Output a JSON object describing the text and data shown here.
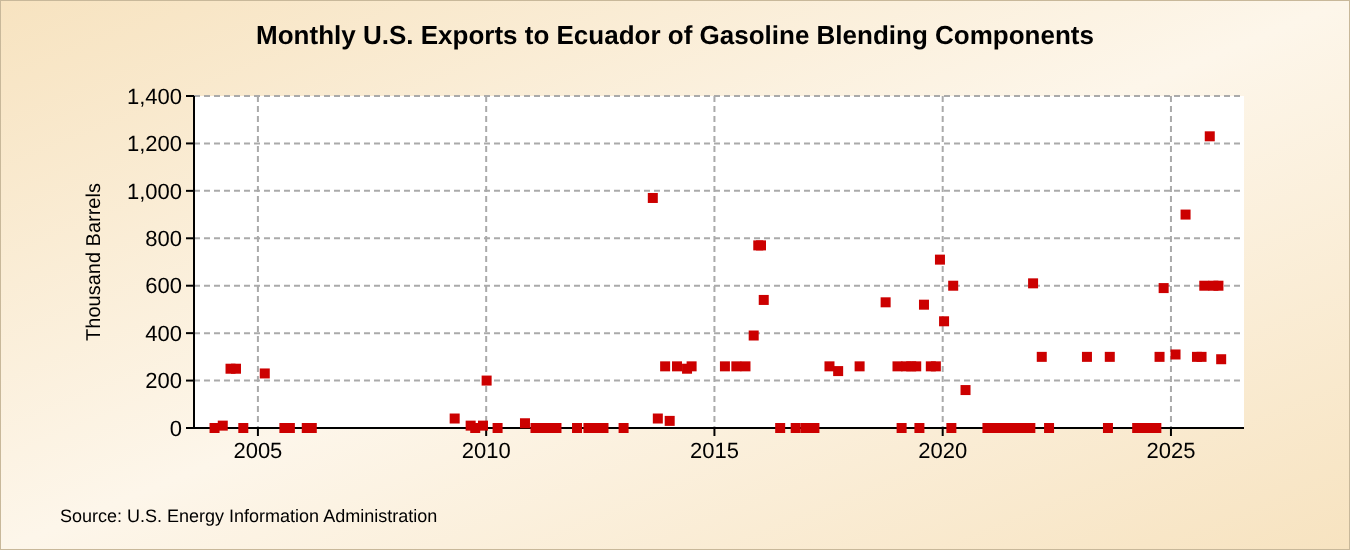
{
  "chart_data": {
    "type": "scatter",
    "title": "Monthly U.S. Exports to Ecuador of Gasoline Blending Components",
    "ylabel": "Thousand Barrels",
    "annotations": [
      "Source: U.S. Energy Information Administration"
    ],
    "marker": "square",
    "grid": true,
    "xlim": [
      2003.6,
      2026.6
    ],
    "xticks": [
      2005,
      2010,
      2015,
      2020,
      2025
    ],
    "ylim": [
      0,
      1400
    ],
    "yticks": [
      {
        "value": 0,
        "label": "0"
      },
      {
        "value": 200,
        "label": "200"
      },
      {
        "value": 400,
        "label": "400"
      },
      {
        "value": 600,
        "label": "600"
      },
      {
        "value": 800,
        "label": "800"
      },
      {
        "value": 1000,
        "label": "1,000"
      },
      {
        "value": 1200,
        "label": "1,200"
      },
      {
        "value": 1400,
        "label": "1,400"
      }
    ],
    "series": [
      {
        "color": "#cc0000",
        "x": [
          2004.05,
          2004.23,
          2004.4,
          2004.52,
          2004.68,
          2005.15,
          2005.58,
          2005.7,
          2006.07,
          2006.18,
          2009.31,
          2009.66,
          2009.76,
          2009.93,
          2010.01,
          2010.25,
          2010.85,
          2011.08,
          2011.2,
          2011.32,
          2011.43,
          2011.54,
          2011.99,
          2012.24,
          2012.35,
          2012.47,
          2012.57,
          2013.01,
          2013.65,
          2013.76,
          2013.92,
          2014.02,
          2014.18,
          2014.4,
          2014.5,
          2015.23,
          2015.48,
          2015.68,
          2015.86,
          2015.96,
          2016.02,
          2016.08,
          2016.44,
          2016.78,
          2017.0,
          2017.19,
          2017.52,
          2017.71,
          2018.18,
          2018.75,
          2019.01,
          2019.1,
          2019.2,
          2019.31,
          2019.42,
          2019.49,
          2019.59,
          2019.74,
          2019.85,
          2019.94,
          2020.03,
          2020.19,
          2020.23,
          2020.5,
          2020.98,
          2021.09,
          2021.2,
          2021.31,
          2021.41,
          2021.53,
          2021.65,
          2021.76,
          2021.92,
          2021.98,
          2022.17,
          2022.33,
          2023.16,
          2023.62,
          2023.66,
          2024.26,
          2024.37,
          2024.53,
          2024.68,
          2024.75,
          2024.84,
          2025.1,
          2025.32,
          2025.57,
          2025.67,
          2025.73,
          2025.85,
          2025.93,
          2026.04,
          2026.1
        ],
        "values": [
          0,
          10,
          250,
          250,
          0,
          230,
          0,
          0,
          0,
          0,
          40,
          10,
          0,
          10,
          200,
          0,
          20,
          0,
          0,
          0,
          0,
          0,
          0,
          0,
          0,
          0,
          0,
          0,
          970,
          40,
          260,
          30,
          260,
          250,
          260,
          260,
          260,
          260,
          390,
          770,
          770,
          540,
          0,
          0,
          0,
          0,
          260,
          240,
          260,
          530,
          260,
          0,
          260,
          260,
          260,
          0,
          520,
          260,
          260,
          710,
          450,
          0,
          600,
          160,
          0,
          0,
          0,
          0,
          0,
          0,
          0,
          0,
          0,
          610,
          300,
          0,
          300,
          0,
          300,
          0,
          0,
          0,
          0,
          300,
          590,
          310,
          900,
          300,
          300,
          600,
          1230,
          600,
          600,
          290
        ]
      }
    ]
  }
}
